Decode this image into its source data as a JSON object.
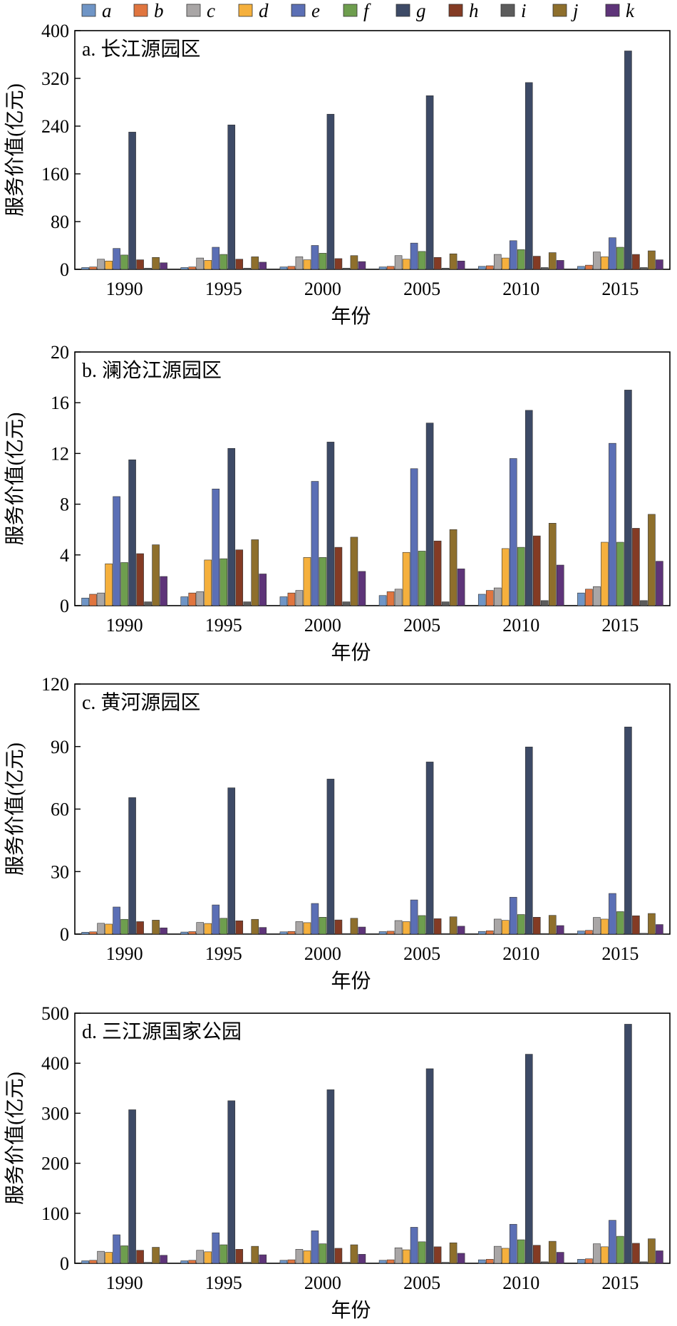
{
  "legend": {
    "keys": [
      "a",
      "b",
      "c",
      "d",
      "e",
      "f",
      "g",
      "h",
      "i",
      "j",
      "k"
    ],
    "colors": [
      "#6f95c6",
      "#e0753f",
      "#a9a6a6",
      "#f5b03d",
      "#5b6fb5",
      "#6e9e4e",
      "#3d4a66",
      "#843b24",
      "#5c5c5c",
      "#8e6f2c",
      "#5e3479"
    ]
  },
  "chart_data": [
    {
      "type": "bar",
      "title": "a. 长江源园区",
      "xlabel": "年份",
      "ylabel": "服务价值(亿元)",
      "categories": [
        "1990",
        "1995",
        "2000",
        "2005",
        "2010",
        "2015"
      ],
      "ylim": [
        0,
        400
      ],
      "yticks": [
        0,
        80,
        160,
        240,
        320,
        400
      ],
      "series": [
        {
          "name": "a",
          "values": [
            3,
            3,
            4,
            4,
            5,
            5
          ]
        },
        {
          "name": "b",
          "values": [
            4,
            4,
            5,
            5,
            6,
            7
          ]
        },
        {
          "name": "c",
          "values": [
            17,
            19,
            21,
            23,
            25,
            29
          ]
        },
        {
          "name": "d",
          "values": [
            14,
            15,
            16,
            17,
            19,
            21
          ]
        },
        {
          "name": "e",
          "values": [
            35,
            37,
            40,
            44,
            48,
            53
          ]
        },
        {
          "name": "f",
          "values": [
            24,
            25,
            27,
            30,
            33,
            37
          ]
        },
        {
          "name": "g",
          "values": [
            230,
            242,
            260,
            291,
            313,
            366
          ]
        },
        {
          "name": "h",
          "values": [
            16,
            17,
            18,
            20,
            22,
            25
          ]
        },
        {
          "name": "i",
          "values": [
            2,
            2,
            2,
            2,
            3,
            3
          ]
        },
        {
          "name": "j",
          "values": [
            20,
            21,
            23,
            26,
            28,
            31
          ]
        },
        {
          "name": "k",
          "values": [
            11,
            12,
            13,
            14,
            15,
            16
          ]
        }
      ]
    },
    {
      "type": "bar",
      "title": "b. 澜沧江源园区",
      "xlabel": "年份",
      "ylabel": "服务价值(亿元)",
      "categories": [
        "1990",
        "1995",
        "2000",
        "2005",
        "2010",
        "2015"
      ],
      "ylim": [
        0,
        20
      ],
      "yticks": [
        0,
        4,
        8,
        12,
        16,
        20
      ],
      "series": [
        {
          "name": "a",
          "values": [
            0.6,
            0.7,
            0.7,
            0.8,
            0.9,
            1.0
          ]
        },
        {
          "name": "b",
          "values": [
            0.9,
            1.0,
            1.0,
            1.1,
            1.2,
            1.3
          ]
        },
        {
          "name": "c",
          "values": [
            1.0,
            1.1,
            1.2,
            1.3,
            1.4,
            1.5
          ]
        },
        {
          "name": "d",
          "values": [
            3.3,
            3.6,
            3.8,
            4.2,
            4.5,
            5.0
          ]
        },
        {
          "name": "e",
          "values": [
            8.6,
            9.2,
            9.8,
            10.8,
            11.6,
            12.8
          ]
        },
        {
          "name": "f",
          "values": [
            3.4,
            3.7,
            3.8,
            4.3,
            4.6,
            5.0
          ]
        },
        {
          "name": "g",
          "values": [
            11.5,
            12.4,
            12.9,
            14.4,
            15.4,
            17.0
          ]
        },
        {
          "name": "h",
          "values": [
            4.1,
            4.4,
            4.6,
            5.1,
            5.5,
            6.1
          ]
        },
        {
          "name": "i",
          "values": [
            0.3,
            0.3,
            0.3,
            0.3,
            0.4,
            0.4
          ]
        },
        {
          "name": "j",
          "values": [
            4.8,
            5.2,
            5.4,
            6.0,
            6.5,
            7.2
          ]
        },
        {
          "name": "k",
          "values": [
            2.3,
            2.5,
            2.7,
            2.9,
            3.2,
            3.5
          ]
        }
      ]
    },
    {
      "type": "bar",
      "title": "c. 黄河源园区",
      "xlabel": "年份",
      "ylabel": "服务价值(亿元)",
      "categories": [
        "1990",
        "1995",
        "2000",
        "2005",
        "2010",
        "2015"
      ],
      "ylim": [
        0,
        120
      ],
      "yticks": [
        0,
        30,
        60,
        90,
        120
      ],
      "series": [
        {
          "name": "a",
          "values": [
            0.9,
            1.0,
            1.1,
            1.2,
            1.3,
            1.5
          ]
        },
        {
          "name": "b",
          "values": [
            1.1,
            1.2,
            1.3,
            1.4,
            1.6,
            1.8
          ]
        },
        {
          "name": "c",
          "values": [
            5.2,
            5.6,
            6.0,
            6.5,
            7.2,
            8.0
          ]
        },
        {
          "name": "d",
          "values": [
            4.8,
            5.1,
            5.5,
            6.0,
            6.6,
            7.2
          ]
        },
        {
          "name": "e",
          "values": [
            13.0,
            14.0,
            14.7,
            16.4,
            17.7,
            19.5
          ]
        },
        {
          "name": "f",
          "values": [
            7.1,
            7.6,
            8.1,
            8.9,
            9.4,
            10.8
          ]
        },
        {
          "name": "g",
          "values": [
            65.5,
            70.2,
            74.4,
            82.6,
            89.8,
            99.4
          ]
        },
        {
          "name": "h",
          "values": [
            6.0,
            6.4,
            6.8,
            7.4,
            8.1,
            8.8
          ]
        },
        {
          "name": "i",
          "values": [
            0.3,
            0.3,
            0.3,
            0.3,
            0.3,
            0.4
          ]
        },
        {
          "name": "j",
          "values": [
            6.7,
            7.1,
            7.6,
            8.3,
            9.0,
            9.9
          ]
        },
        {
          "name": "k",
          "values": [
            3.0,
            3.2,
            3.4,
            3.8,
            4.1,
            4.6
          ]
        }
      ]
    },
    {
      "type": "bar",
      "title": "d. 三江源国家公园",
      "xlabel": "年份",
      "ylabel": "服务价值(亿元)",
      "categories": [
        "1990",
        "1995",
        "2000",
        "2005",
        "2010",
        "2015"
      ],
      "ylim": [
        0,
        500
      ],
      "yticks": [
        0,
        100,
        200,
        300,
        400,
        500
      ],
      "series": [
        {
          "name": "a",
          "values": [
            5,
            5,
            6,
            6,
            7,
            8
          ]
        },
        {
          "name": "b",
          "values": [
            6,
            6,
            7,
            7,
            8,
            9
          ]
        },
        {
          "name": "c",
          "values": [
            24,
            26,
            28,
            31,
            34,
            39
          ]
        },
        {
          "name": "d",
          "values": [
            22,
            23,
            25,
            27,
            30,
            33
          ]
        },
        {
          "name": "e",
          "values": [
            57,
            61,
            65,
            72,
            78,
            86
          ]
        },
        {
          "name": "f",
          "values": [
            35,
            37,
            39,
            43,
            47,
            54
          ]
        },
        {
          "name": "g",
          "values": [
            307,
            325,
            347,
            389,
            418,
            478
          ]
        },
        {
          "name": "h",
          "values": [
            26,
            28,
            30,
            33,
            36,
            40
          ]
        },
        {
          "name": "i",
          "values": [
            2,
            2,
            2,
            2,
            3,
            3
          ]
        },
        {
          "name": "j",
          "values": [
            32,
            34,
            37,
            41,
            44,
            49
          ]
        },
        {
          "name": "k",
          "values": [
            16,
            17,
            18,
            20,
            22,
            25
          ]
        }
      ]
    }
  ]
}
